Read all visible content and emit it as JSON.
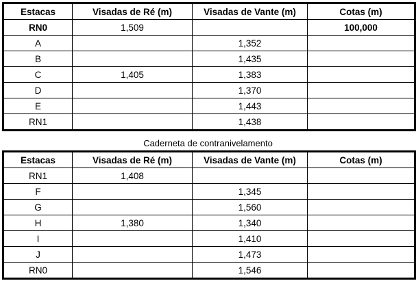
{
  "headers": [
    "Estacas",
    "Visadas de Ré (m)",
    "Visadas de Vante (m)",
    "Cotas (m)"
  ],
  "table1": {
    "rows": [
      {
        "estaca": "RN0",
        "re": "1,509",
        "vante": "",
        "cota": "100,000",
        "bold": true
      },
      {
        "estaca": "A",
        "re": "",
        "vante": "1,352",
        "cota": ""
      },
      {
        "estaca": "B",
        "re": "",
        "vante": "1,435",
        "cota": ""
      },
      {
        "estaca": "C",
        "re": "1,405",
        "vante": "1,383",
        "cota": ""
      },
      {
        "estaca": "D",
        "re": "",
        "vante": "1,370",
        "cota": ""
      },
      {
        "estaca": "E",
        "re": "",
        "vante": "1,443",
        "cota": ""
      },
      {
        "estaca": "RN1",
        "re": "",
        "vante": "1,438",
        "cota": ""
      }
    ]
  },
  "table2": {
    "caption": "Caderneta de contranivelamento",
    "rows": [
      {
        "estaca": "RN1",
        "re": "1,408",
        "vante": "",
        "cota": ""
      },
      {
        "estaca": "F",
        "re": "",
        "vante": "1,345",
        "cota": ""
      },
      {
        "estaca": "G",
        "re": "",
        "vante": "1,560",
        "cota": ""
      },
      {
        "estaca": "H",
        "re": "1,380",
        "vante": "1,340",
        "cota": ""
      },
      {
        "estaca": "I",
        "re": "",
        "vante": "1,410",
        "cota": ""
      },
      {
        "estaca": "J",
        "re": "",
        "vante": "1,473",
        "cota": ""
      },
      {
        "estaca": "RN0",
        "re": "",
        "vante": "1,546",
        "cota": ""
      }
    ]
  }
}
